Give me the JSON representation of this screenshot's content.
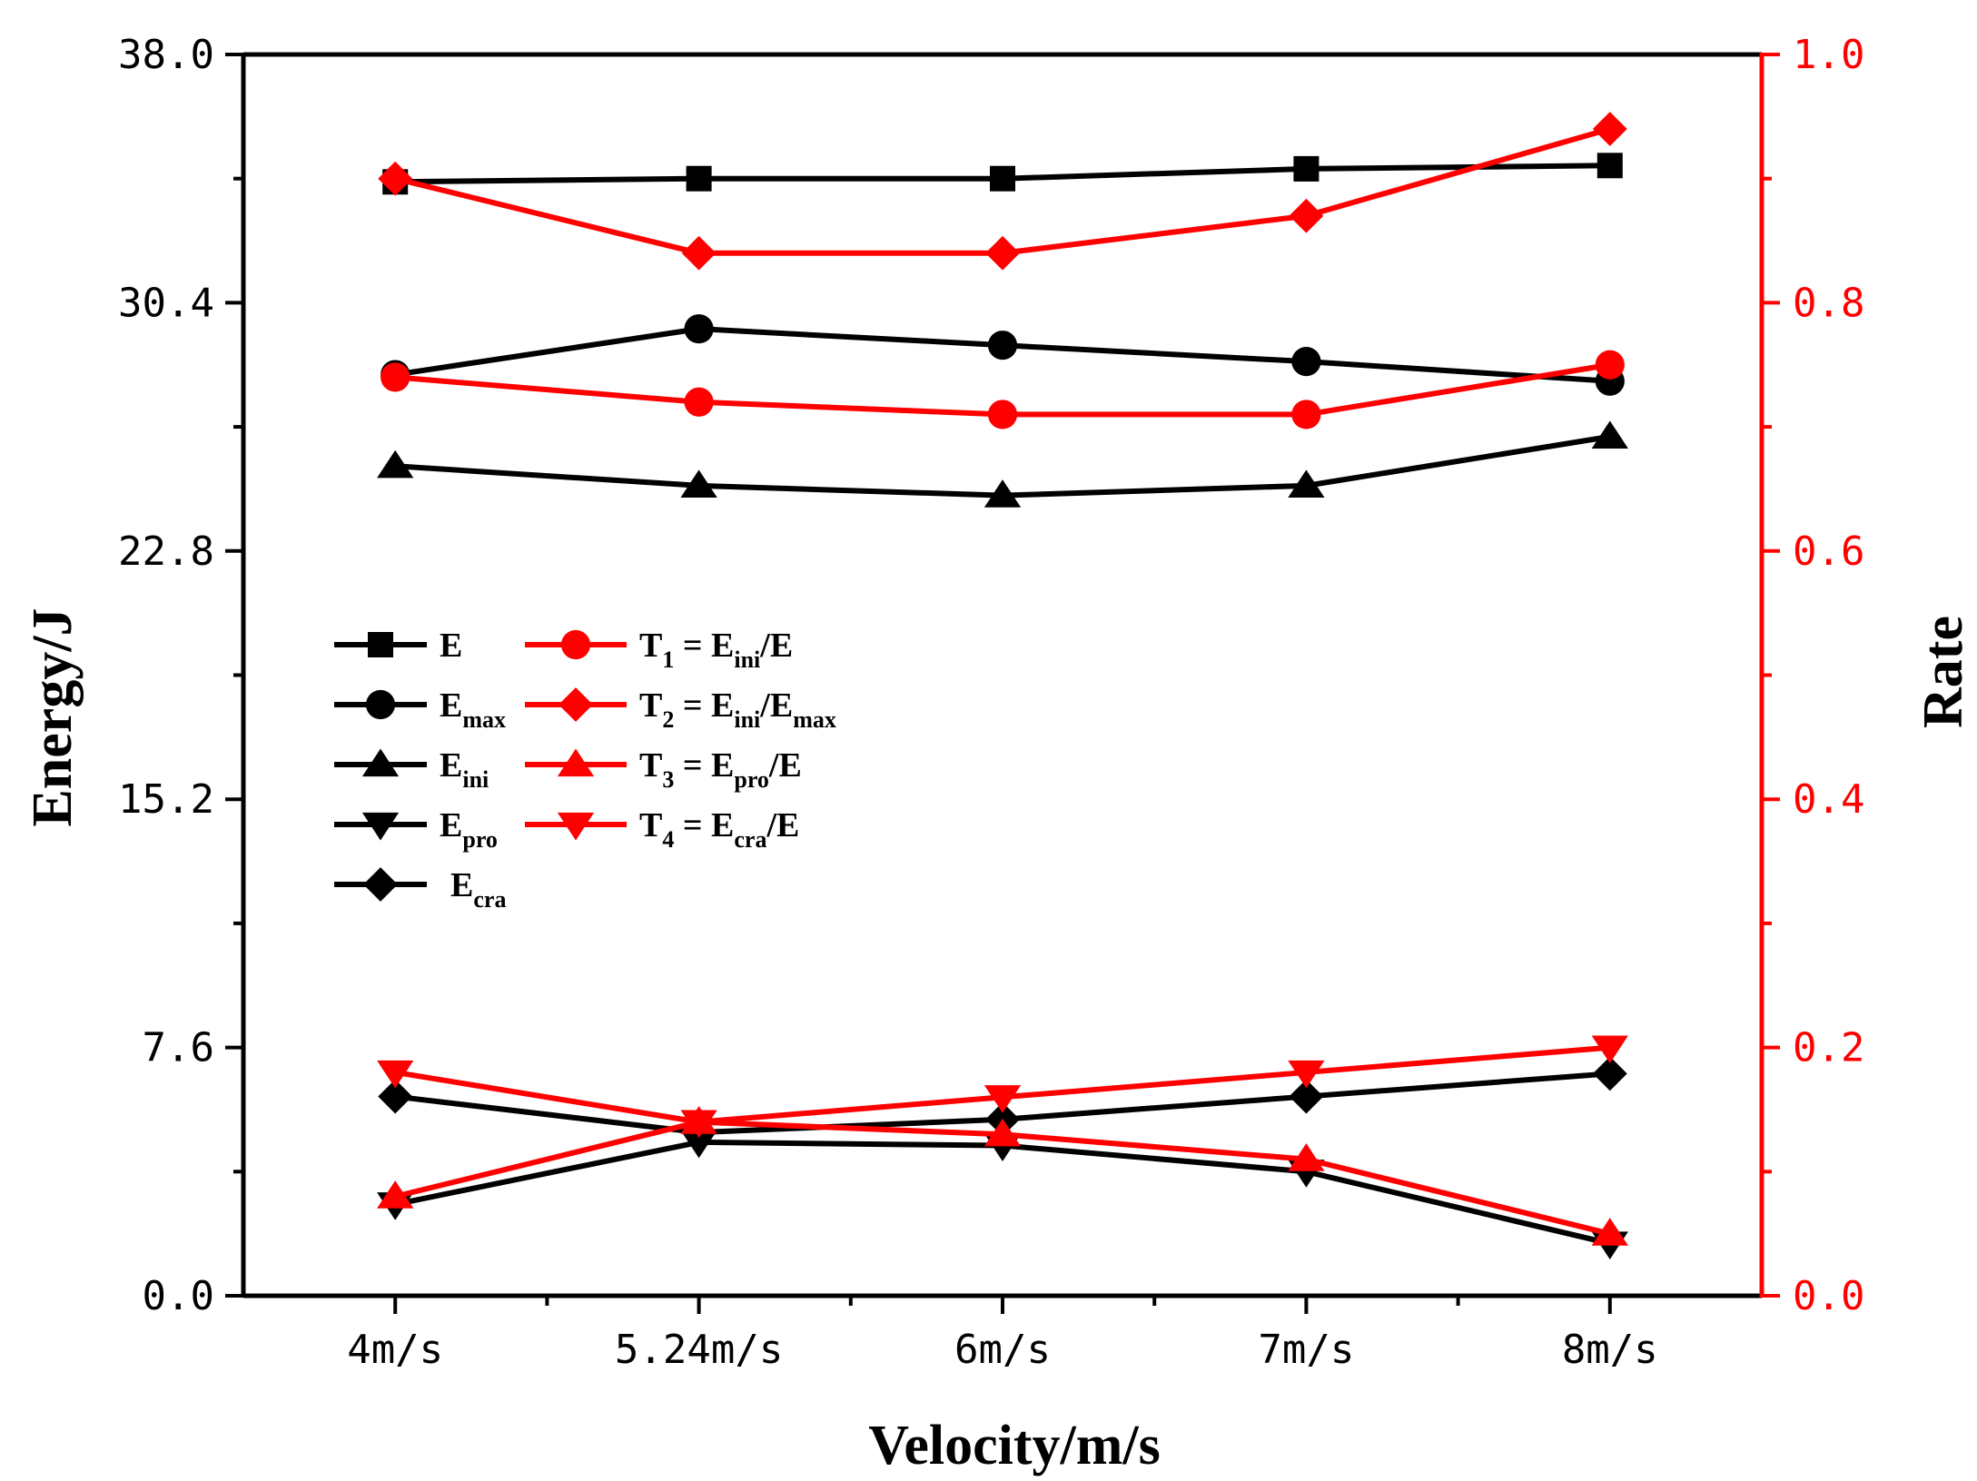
{
  "chart_data": {
    "type": "line",
    "xlabel": "Velocity/m/s",
    "ylabel_left": "Energy/J",
    "ylabel_right": "Rate",
    "categories": [
      "4m/s",
      "5.24m/s",
      "6m/s",
      "7m/s",
      "8m/s"
    ],
    "ylim_left": [
      0,
      38
    ],
    "ylim_right": [
      0,
      1
    ],
    "yticks_left": [
      "0.0",
      "7.6",
      "15.2",
      "22.8",
      "30.4",
      "38.0"
    ],
    "yticks_right": [
      "0.0",
      "0.2",
      "0.4",
      "0.6",
      "0.8",
      "1.0"
    ],
    "colors": {
      "left_axis": "#000000",
      "right_axis": "#ff0000"
    },
    "series": [
      {
        "name": "E",
        "sub": "",
        "axis": "left",
        "marker": "square",
        "color": "#000000",
        "values": [
          34.1,
          34.2,
          34.2,
          34.5,
          34.6
        ]
      },
      {
        "name": "E",
        "sub": "max",
        "axis": "left",
        "marker": "circle",
        "color": "#000000",
        "values": [
          28.2,
          29.6,
          29.1,
          28.6,
          28.0
        ]
      },
      {
        "name": "E",
        "sub": "ini",
        "axis": "left",
        "marker": "triangle-up",
        "color": "#000000",
        "values": [
          25.4,
          24.8,
          24.5,
          24.8,
          26.3
        ]
      },
      {
        "name": "E",
        "sub": "pro",
        "axis": "left",
        "marker": "triangle-down",
        "color": "#000000",
        "values": [
          2.8,
          4.7,
          4.6,
          3.8,
          1.6
        ]
      },
      {
        "name": "E",
        "sub": "cra",
        "axis": "left",
        "marker": "diamond",
        "color": "#000000",
        "values": [
          6.1,
          5.0,
          5.4,
          6.1,
          6.8
        ]
      },
      {
        "name": "T1 = Eini/E",
        "label_parts": [
          [
            "T",
            ""
          ],
          [
            "1",
            "sub"
          ],
          [
            " = E",
            ""
          ],
          [
            "ini",
            "sub"
          ],
          [
            "/E",
            ""
          ]
        ],
        "axis": "right",
        "marker": "circle",
        "color": "#ff0000",
        "values": [
          0.74,
          0.72,
          0.71,
          0.71,
          0.75
        ]
      },
      {
        "name": "T2 = Eini/Emax",
        "label_parts": [
          [
            "T",
            ""
          ],
          [
            "2",
            "sub"
          ],
          [
            " = E",
            ""
          ],
          [
            "ini",
            "sub"
          ],
          [
            "/E",
            ""
          ],
          [
            "max",
            "sub"
          ]
        ],
        "axis": "right",
        "marker": "diamond",
        "color": "#ff0000",
        "values": [
          0.9,
          0.84,
          0.84,
          0.87,
          0.94
        ]
      },
      {
        "name": "T3 = Epro/E",
        "label_parts": [
          [
            "T",
            ""
          ],
          [
            "3",
            "sub"
          ],
          [
            " = E",
            ""
          ],
          [
            "pro",
            "sub"
          ],
          [
            "/E",
            ""
          ]
        ],
        "axis": "right",
        "marker": "triangle-up",
        "color": "#ff0000",
        "values": [
          0.08,
          0.14,
          0.13,
          0.11,
          0.05
        ]
      },
      {
        "name": "T4 = Ecra/E",
        "label_parts": [
          [
            "T",
            ""
          ],
          [
            "4",
            "sub"
          ],
          [
            " = E",
            ""
          ],
          [
            "cra",
            "sub"
          ],
          [
            "/E",
            ""
          ]
        ],
        "axis": "right",
        "marker": "triangle-down",
        "color": "#ff0000",
        "values": [
          0.18,
          0.14,
          0.16,
          0.18,
          0.2
        ]
      }
    ]
  }
}
